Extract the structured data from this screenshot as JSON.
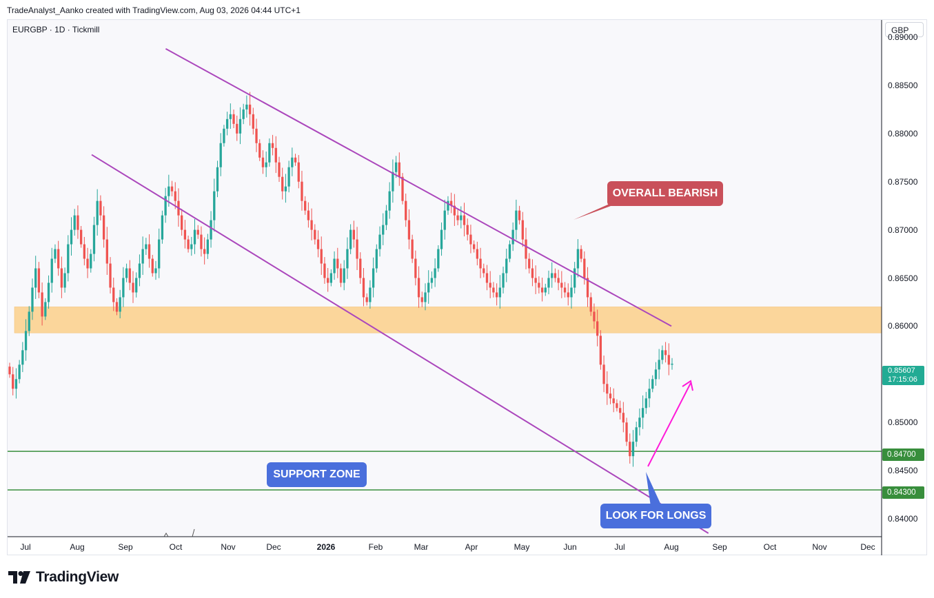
{
  "header": {
    "attribution": "TradeAnalyst_Aanko created with TradingView.com, Aug 03, 2026 04:44 UTC+1"
  },
  "symbol": {
    "title": "EURGBP · 1D · Tickmill",
    "currency": "GBP"
  },
  "last_price": {
    "value": "0.85607",
    "countdown": "17:15:06"
  },
  "footer": {
    "brand": "TradingView"
  },
  "colors": {
    "up": "#26a69a",
    "down": "#ef5350",
    "channel": "#ab47bc",
    "zone": "#fbd69b",
    "support_line": "#388e3c",
    "arrow": "#ff1ad9",
    "bearish_label": "#c9505a",
    "blue_label": "#4a6fdc"
  },
  "chart_data": {
    "type": "candlestick",
    "instrument": "EURGBP",
    "timeframe": "1D",
    "y_ticks": [
      "0.89000",
      "0.88500",
      "0.88000",
      "0.87500",
      "0.87000",
      "0.86500",
      "0.86000",
      "0.85500",
      "0.85000",
      "0.84500",
      "0.84000"
    ],
    "y_range": [
      0.8385,
      0.891
    ],
    "x_ticks": [
      {
        "label": "Jul",
        "bold": false
      },
      {
        "label": "Aug",
        "bold": false
      },
      {
        "label": "Sep",
        "bold": false
      },
      {
        "label": "Oct",
        "bold": false
      },
      {
        "label": "Nov",
        "bold": false
      },
      {
        "label": "Dec",
        "bold": false
      },
      {
        "label": "2026",
        "bold": true
      },
      {
        "label": "Feb",
        "bold": false
      },
      {
        "label": "Mar",
        "bold": false
      },
      {
        "label": "Apr",
        "bold": false
      },
      {
        "label": "May",
        "bold": false
      },
      {
        "label": "Jun",
        "bold": false
      },
      {
        "label": "Jul",
        "bold": false
      },
      {
        "label": "Aug",
        "bold": false
      },
      {
        "label": "Sep",
        "bold": false
      },
      {
        "label": "Oct",
        "bold": false
      },
      {
        "label": "Nov",
        "bold": false
      },
      {
        "label": "Dec",
        "bold": false
      }
    ],
    "closes": [
      0.855,
      0.8535,
      0.8545,
      0.856,
      0.8575,
      0.8595,
      0.8615,
      0.864,
      0.866,
      0.8635,
      0.861,
      0.8625,
      0.8645,
      0.867,
      0.868,
      0.866,
      0.864,
      0.8655,
      0.8685,
      0.87,
      0.8715,
      0.87,
      0.8685,
      0.867,
      0.866,
      0.8675,
      0.8705,
      0.873,
      0.8715,
      0.869,
      0.8665,
      0.864,
      0.8625,
      0.8615,
      0.863,
      0.865,
      0.866,
      0.8645,
      0.8635,
      0.865,
      0.8665,
      0.868,
      0.8685,
      0.867,
      0.8655,
      0.866,
      0.869,
      0.8715,
      0.8735,
      0.8745,
      0.874,
      0.873,
      0.8715,
      0.87,
      0.869,
      0.868,
      0.8685,
      0.87,
      0.8695,
      0.868,
      0.8675,
      0.869,
      0.871,
      0.874,
      0.8765,
      0.879,
      0.8805,
      0.8815,
      0.882,
      0.881,
      0.88,
      0.8815,
      0.8825,
      0.883,
      0.882,
      0.8805,
      0.879,
      0.8775,
      0.8765,
      0.877,
      0.879,
      0.8785,
      0.877,
      0.8755,
      0.874,
      0.8745,
      0.8765,
      0.8775,
      0.877,
      0.875,
      0.873,
      0.872,
      0.871,
      0.87,
      0.869,
      0.868,
      0.8665,
      0.865,
      0.8645,
      0.8655,
      0.867,
      0.866,
      0.8645,
      0.866,
      0.868,
      0.87,
      0.869,
      0.867,
      0.865,
      0.863,
      0.8625,
      0.864,
      0.866,
      0.868,
      0.8695,
      0.8705,
      0.872,
      0.874,
      0.876,
      0.877,
      0.8755,
      0.873,
      0.871,
      0.869,
      0.867,
      0.865,
      0.863,
      0.8625,
      0.8635,
      0.8645,
      0.865,
      0.866,
      0.868,
      0.87,
      0.872,
      0.873,
      0.8725,
      0.8715,
      0.871,
      0.8715,
      0.8705,
      0.8695,
      0.8685,
      0.868,
      0.867,
      0.866,
      0.8655,
      0.8645,
      0.864,
      0.8635,
      0.863,
      0.864,
      0.8655,
      0.867,
      0.8685,
      0.87,
      0.872,
      0.871,
      0.869,
      0.867,
      0.866,
      0.865,
      0.8645,
      0.864,
      0.8635,
      0.864,
      0.865,
      0.8655,
      0.865,
      0.8645,
      0.864,
      0.8635,
      0.863,
      0.864,
      0.866,
      0.868,
      0.867,
      0.865,
      0.863,
      0.8615,
      0.8605,
      0.859,
      0.856,
      0.854,
      0.853,
      0.8525,
      0.852,
      0.8515,
      0.851,
      0.85,
      0.848,
      0.8465,
      0.848,
      0.8495,
      0.8505,
      0.8515,
      0.8525,
      0.8535,
      0.8545,
      0.8555,
      0.8565,
      0.8575,
      0.857,
      0.856,
      0.8561
    ],
    "channel_upper": [
      [
        "2025-09-25",
        0.8888
      ],
      [
        "2026-07-31",
        0.86
      ]
    ],
    "channel_lower": [
      [
        "2025-08-10",
        0.8778
      ],
      [
        "2026-08-24",
        0.8385
      ]
    ],
    "horizontal_levels": [
      {
        "value": 0.847,
        "label": "0.84700"
      },
      {
        "value": 0.843,
        "label": "0.84300"
      }
    ],
    "resistance_zone": [
      0.8593,
      0.862
    ],
    "annotations": [
      {
        "text": "OVERALL BEARISH"
      },
      {
        "text": "SUPPORT ZONE"
      },
      {
        "text": "LOOK FOR LONGS"
      }
    ]
  }
}
